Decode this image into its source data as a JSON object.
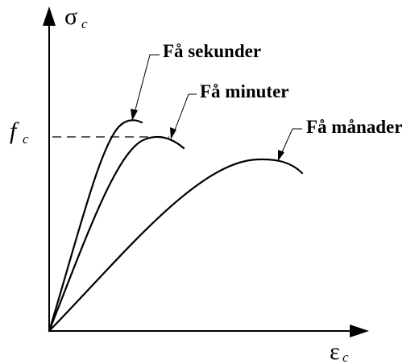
{
  "diagram": {
    "y_axis": {
      "symbol": "σ",
      "subscript": "c"
    },
    "x_axis": {
      "symbol": "ε",
      "subscript": "c"
    },
    "strength_level": {
      "symbol": "f",
      "subscript": "c"
    },
    "curves": [
      {
        "label": "Få sekunder"
      },
      {
        "label": "Få minuter"
      },
      {
        "label": "Få månader"
      }
    ]
  }
}
